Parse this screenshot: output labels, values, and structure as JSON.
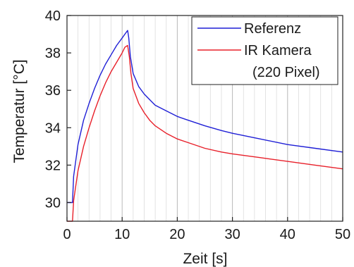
{
  "chart_data": {
    "type": "line",
    "xlabel": "Zeit [s]",
    "ylabel": "Temperatur [°C]",
    "xlim": [
      0,
      50
    ],
    "ylim": [
      29,
      40
    ],
    "xticks": [
      0,
      10,
      20,
      30,
      40,
      50
    ],
    "yticks": [
      30,
      32,
      34,
      36,
      38,
      40
    ],
    "x_minor_step": 2,
    "grid": "vertical",
    "legend_position": "top-right",
    "legend_lines": [
      {
        "text": "Referenz",
        "color": "#1f1fd6",
        "series": 0
      },
      {
        "text": "IR Kamera",
        "color": "#e8202a",
        "series": 1
      },
      {
        "text": "(220 Pixel)",
        "color": null,
        "series": null
      }
    ],
    "series": [
      {
        "name": "Referenz",
        "color": "#1f1fd6",
        "x": [
          0,
          1,
          1.2,
          2,
          3,
          4,
          5,
          6,
          7,
          8,
          9,
          10,
          10.5,
          11,
          11.2,
          11.5,
          12,
          13,
          14,
          15,
          16,
          18,
          20,
          22,
          25,
          28,
          30,
          35,
          40,
          45,
          50
        ],
        "y": [
          30,
          30,
          31.4,
          33.1,
          34.4,
          35.3,
          36.1,
          36.8,
          37.4,
          37.9,
          38.4,
          38.8,
          39.0,
          39.2,
          38.8,
          37.8,
          36.9,
          36.2,
          35.8,
          35.5,
          35.2,
          34.9,
          34.6,
          34.4,
          34.1,
          33.85,
          33.7,
          33.4,
          33.1,
          32.9,
          32.7
        ]
      },
      {
        "name": "IR Kamera",
        "color": "#e8202a",
        "x": [
          0,
          1,
          1.2,
          2,
          3,
          4,
          5,
          6,
          7,
          8,
          9,
          10,
          10.5,
          11,
          11.3,
          11.6,
          12,
          13,
          14,
          15,
          16,
          18,
          20,
          22,
          25,
          28,
          30,
          35,
          40,
          45,
          50
        ],
        "y": [
          29,
          29,
          30.1,
          31.7,
          33.0,
          34.0,
          34.9,
          35.7,
          36.4,
          37.0,
          37.5,
          38.0,
          38.3,
          38.4,
          37.8,
          36.9,
          36.1,
          35.3,
          34.8,
          34.4,
          34.1,
          33.7,
          33.4,
          33.2,
          32.9,
          32.7,
          32.6,
          32.4,
          32.2,
          32.0,
          31.8
        ]
      }
    ]
  }
}
